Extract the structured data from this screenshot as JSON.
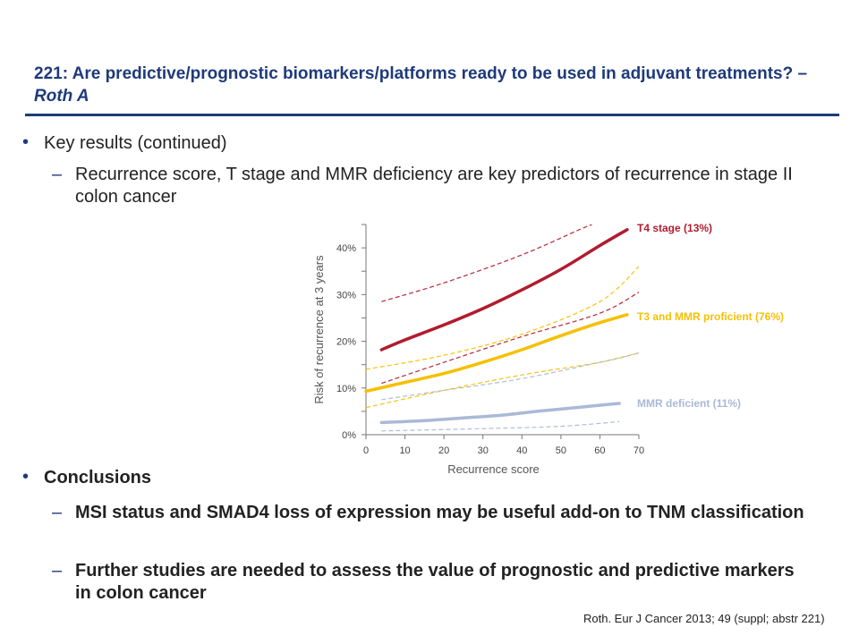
{
  "slide": {
    "title_main": "221: Are predictive/prognostic biomarkers/platforms ready to be used in adjuvant treatments? – ",
    "title_author": "Roth A",
    "bullet1": "Key results (continued)",
    "sub1": "Recurrence score, T stage and MMR deficiency are key predictors of recurrence in stage II colon cancer",
    "bullet2": "Conclusions",
    "sub2": "MSI status and SMAD4 loss of expression may be useful add-on to TNM classification",
    "sub3": "Further studies are needed to assess the value of prognostic and predictive markers in colon cancer",
    "citation": "Roth. Eur J Cancer 2013; 49 (suppl; abstr 221)",
    "bullet_glyph": "•",
    "dash_glyph": "–"
  },
  "colors": {
    "title": "#1e3a7a",
    "t4": "#b01c2e",
    "t3": "#f5c000",
    "mmr": "#aab9d6"
  },
  "chart_data": {
    "type": "line",
    "xlabel": "Recurrence score",
    "ylabel": "Risk of recurrence at 3 years",
    "xlim": [
      0,
      70
    ],
    "ylim": [
      0,
      45
    ],
    "xticks": [
      "0",
      "10",
      "20",
      "30",
      "40",
      "50",
      "60",
      "70"
    ],
    "yticks": [
      "0%",
      "10%",
      "20%",
      "30%",
      "40%"
    ],
    "grid": false,
    "legend": "right, inline labels",
    "series": [
      {
        "name": "T4 stage (13%)",
        "color": "#b01c2e",
        "x": [
          4,
          10,
          20,
          30,
          40,
          50,
          60,
          67
        ],
        "y": [
          18.2,
          20.3,
          23.5,
          27.0,
          31.0,
          35.4,
          40.5,
          43.9
        ],
        "ci_lower": {
          "x": [
            4,
            20,
            40,
            60,
            70
          ],
          "y": [
            11.0,
            15.5,
            21.0,
            26.0,
            30.5
          ]
        },
        "ci_upper": {
          "x": [
            4,
            20,
            40,
            55,
            58
          ],
          "y": [
            28.5,
            32.5,
            38.5,
            44.0,
            45.0
          ]
        }
      },
      {
        "name": "T3 and MMR proficient (76%)",
        "color": "#f5c000",
        "x": [
          0,
          10,
          20,
          30,
          40,
          50,
          60,
          67
        ],
        "y": [
          9.3,
          11.2,
          13.1,
          15.5,
          18.2,
          21.2,
          24.0,
          25.7
        ],
        "ci_lower": {
          "x": [
            0,
            20,
            40,
            60,
            70
          ],
          "y": [
            5.8,
            9.5,
            12.8,
            15.5,
            17.5
          ]
        },
        "ci_upper": {
          "x": [
            0,
            20,
            40,
            60,
            70
          ],
          "y": [
            14.0,
            17.0,
            21.5,
            28.5,
            36.0
          ]
        }
      },
      {
        "name": "MMR deficient (11%)",
        "color": "#aab9d6",
        "x": [
          4,
          15,
          25,
          35,
          45,
          55,
          65
        ],
        "y": [
          2.6,
          3.0,
          3.6,
          4.2,
          5.1,
          5.9,
          6.7
        ],
        "ci_lower": {
          "x": [
            4,
            30,
            50,
            65
          ],
          "y": [
            0.8,
            1.3,
            1.8,
            2.8
          ]
        },
        "ci_upper": {
          "x": [
            4,
            20,
            40,
            60,
            70
          ],
          "y": [
            7.5,
            9.5,
            12.0,
            15.5,
            17.5
          ]
        }
      }
    ]
  }
}
